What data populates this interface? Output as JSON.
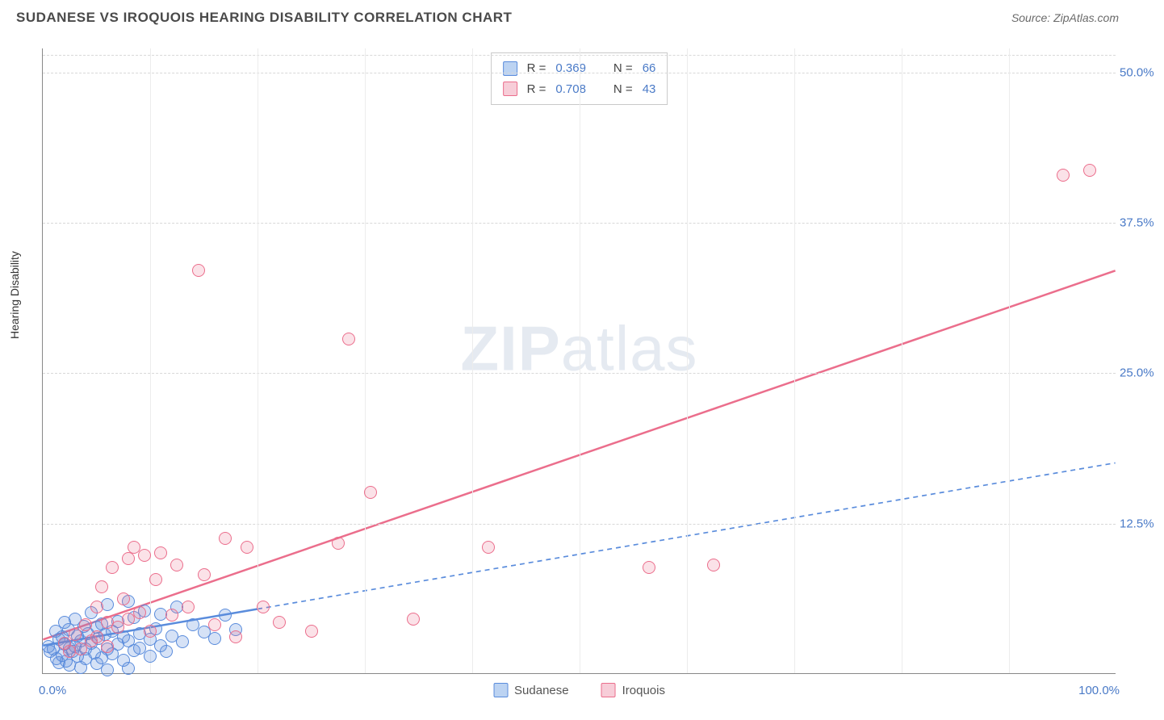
{
  "header": {
    "title": "SUDANESE VS IROQUOIS HEARING DISABILITY CORRELATION CHART",
    "source": "Source: ZipAtlas.com"
  },
  "chart": {
    "type": "scatter",
    "ylabel": "Hearing Disability",
    "background_color": "#ffffff",
    "grid_color": "#d8d8d8",
    "axis_color": "#888888",
    "tick_color": "#4a7ac7",
    "xlim": [
      0,
      100
    ],
    "ylim": [
      0,
      52
    ],
    "xtick_min_label": "0.0%",
    "xtick_max_label": "100.0%",
    "ytick_labels": [
      "12.5%",
      "25.0%",
      "37.5%",
      "50.0%"
    ],
    "ytick_values": [
      12.5,
      25.0,
      37.5,
      50.0
    ],
    "xgrid_values": [
      10,
      20,
      30,
      40,
      50,
      60,
      70,
      80,
      90
    ],
    "watermark": "ZIPatlas",
    "series": [
      {
        "name": "Sudanese",
        "color_fill": "rgba(90,140,220,0.25)",
        "color_stroke": "#5a8cdc",
        "swatch_fill": "#bcd3f2",
        "swatch_stroke": "#5a8cdc",
        "R_label": "R =",
        "R": "0.369",
        "N_label": "N =",
        "N": "66",
        "trend": {
          "x1": 0,
          "y1": 2.3,
          "x2": 100,
          "y2": 17.5,
          "solid_until_x": 20,
          "stroke_width": 2.5,
          "dash": "6,5"
        },
        "points": [
          [
            0.5,
            2.2
          ],
          [
            0.7,
            1.8
          ],
          [
            1.0,
            2.0
          ],
          [
            1.2,
            3.5
          ],
          [
            1.3,
            1.2
          ],
          [
            1.5,
            2.8
          ],
          [
            1.5,
            0.9
          ],
          [
            1.8,
            3.0
          ],
          [
            1.8,
            1.5
          ],
          [
            2.0,
            2.4
          ],
          [
            2.0,
            4.2
          ],
          [
            2.2,
            1.0
          ],
          [
            2.4,
            3.6
          ],
          [
            2.5,
            2.1
          ],
          [
            2.5,
            0.7
          ],
          [
            2.8,
            1.8
          ],
          [
            3.0,
            4.5
          ],
          [
            3.0,
            2.2
          ],
          [
            3.2,
            3.1
          ],
          [
            3.2,
            1.4
          ],
          [
            3.5,
            2.7
          ],
          [
            3.5,
            0.5
          ],
          [
            3.8,
            3.9
          ],
          [
            4.0,
            2.0
          ],
          [
            4.0,
            1.2
          ],
          [
            4.2,
            3.3
          ],
          [
            4.5,
            5.0
          ],
          [
            4.5,
            2.5
          ],
          [
            4.8,
            1.7
          ],
          [
            5.0,
            3.8
          ],
          [
            5.0,
            0.8
          ],
          [
            5.2,
            2.9
          ],
          [
            5.5,
            4.1
          ],
          [
            5.5,
            1.3
          ],
          [
            5.8,
            3.2
          ],
          [
            6.0,
            2.0
          ],
          [
            6.0,
            5.7
          ],
          [
            6.5,
            1.6
          ],
          [
            6.5,
            3.5
          ],
          [
            7.0,
            2.4
          ],
          [
            7.0,
            4.3
          ],
          [
            7.5,
            1.1
          ],
          [
            7.5,
            3.0
          ],
          [
            8.0,
            2.7
          ],
          [
            8.0,
            6.0
          ],
          [
            8.5,
            1.9
          ],
          [
            8.5,
            4.6
          ],
          [
            9.0,
            3.3
          ],
          [
            9.0,
            2.1
          ],
          [
            9.5,
            5.2
          ],
          [
            10.0,
            2.8
          ],
          [
            10.0,
            1.4
          ],
          [
            10.5,
            3.7
          ],
          [
            11.0,
            2.3
          ],
          [
            11.0,
            4.9
          ],
          [
            11.5,
            1.8
          ],
          [
            12.0,
            3.1
          ],
          [
            12.5,
            5.5
          ],
          [
            13.0,
            2.6
          ],
          [
            14.0,
            4.0
          ],
          [
            15.0,
            3.4
          ],
          [
            16.0,
            2.9
          ],
          [
            17.0,
            4.8
          ],
          [
            18.0,
            3.6
          ],
          [
            8.0,
            0.4
          ],
          [
            6.0,
            0.3
          ]
        ]
      },
      {
        "name": "Iroquois",
        "color_fill": "rgba(235,110,140,0.20)",
        "color_stroke": "#eb6e8c",
        "swatch_fill": "#f7cdd8",
        "swatch_stroke": "#eb6e8c",
        "R_label": "R =",
        "R": "0.708",
        "N_label": "N =",
        "N": "43",
        "trend": {
          "x1": 0,
          "y1": 2.8,
          "x2": 100,
          "y2": 33.5,
          "solid_until_x": 100,
          "stroke_width": 2.5,
          "dash": ""
        },
        "points": [
          [
            2.0,
            2.5
          ],
          [
            2.5,
            1.8
          ],
          [
            3.0,
            3.2
          ],
          [
            3.5,
            2.0
          ],
          [
            4.0,
            4.0
          ],
          [
            4.5,
            2.7
          ],
          [
            5.0,
            5.5
          ],
          [
            5.0,
            3.0
          ],
          [
            5.5,
            7.2
          ],
          [
            6.0,
            4.2
          ],
          [
            6.0,
            2.2
          ],
          [
            6.5,
            8.8
          ],
          [
            7.0,
            3.8
          ],
          [
            7.5,
            6.2
          ],
          [
            8.0,
            9.5
          ],
          [
            8.0,
            4.5
          ],
          [
            8.5,
            10.5
          ],
          [
            9.0,
            5.0
          ],
          [
            9.5,
            9.8
          ],
          [
            10.0,
            3.5
          ],
          [
            10.5,
            7.8
          ],
          [
            11.0,
            10.0
          ],
          [
            12.0,
            4.8
          ],
          [
            12.5,
            9.0
          ],
          [
            13.5,
            5.5
          ],
          [
            14.5,
            33.5
          ],
          [
            15.0,
            8.2
          ],
          [
            16.0,
            4.0
          ],
          [
            17.0,
            11.2
          ],
          [
            18.0,
            3.0
          ],
          [
            19.0,
            10.5
          ],
          [
            20.5,
            5.5
          ],
          [
            22.0,
            4.2
          ],
          [
            25.0,
            3.5
          ],
          [
            27.5,
            10.8
          ],
          [
            28.5,
            27.8
          ],
          [
            30.5,
            15.0
          ],
          [
            34.5,
            4.5
          ],
          [
            41.5,
            10.5
          ],
          [
            56.5,
            8.8
          ],
          [
            62.5,
            9.0
          ],
          [
            95.0,
            41.4
          ],
          [
            97.5,
            41.8
          ]
        ]
      }
    ],
    "legend": {
      "items": [
        {
          "label": "Sudanese",
          "fill": "#bcd3f2",
          "stroke": "#5a8cdc"
        },
        {
          "label": "Iroquois",
          "fill": "#f7cdd8",
          "stroke": "#eb6e8c"
        }
      ]
    }
  }
}
